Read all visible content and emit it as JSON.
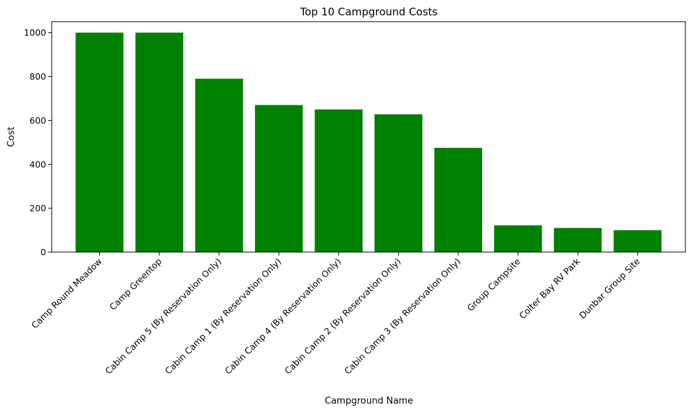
{
  "chart_data": {
    "type": "bar",
    "title": "Top 10 Campground Costs",
    "xlabel": "Campground Name",
    "ylabel": "Cost",
    "categories": [
      "Camp Round Meadow",
      "Camp Greentop",
      "Cabin Camp 5 (By Reservation Only)",
      "Cabin Camp 1 (By Reservation Only)",
      "Cabin Camp 4 (By Reservation Only)",
      "Cabin Camp 2 (By Reservation Only)",
      "Cabin Camp 3 (By Reservation Only)",
      "Group Campsite",
      "Colter Bay RV Park",
      "Dunbar Group Site"
    ],
    "values": [
      1000,
      1000,
      790,
      670,
      650,
      628,
      475,
      122,
      110,
      100
    ],
    "ylim": [
      0,
      1050
    ],
    "yticks": [
      0,
      200,
      400,
      600,
      800,
      1000
    ],
    "bar_color": "#008000",
    "grid": false,
    "legend": "none"
  }
}
